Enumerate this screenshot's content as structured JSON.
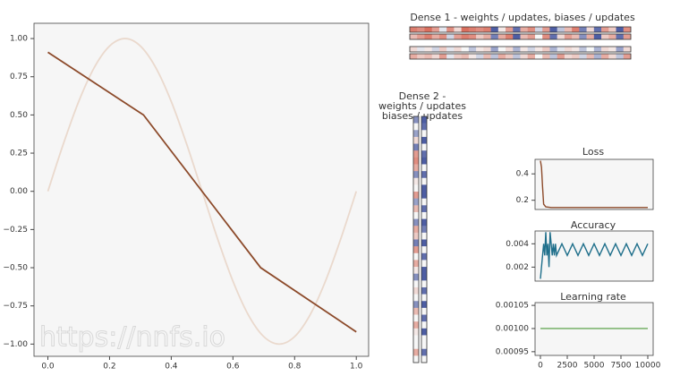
{
  "chart_data": [
    {
      "type": "line",
      "annotation": "https://nnfs.io",
      "xlim": [
        -0.045,
        1.04
      ],
      "ylim": [
        -1.08,
        1.1
      ],
      "xticks": [
        {
          "value": 0,
          "label": "0.0"
        },
        {
          "value": 0.2,
          "label": "0.2"
        },
        {
          "value": 0.4,
          "label": "0.4"
        },
        {
          "value": 0.6,
          "label": "0.6"
        },
        {
          "value": 0.8,
          "label": "0.8"
        },
        {
          "value": 1,
          "label": "1.0"
        }
      ],
      "yticks": [
        {
          "value": 1,
          "label": "1.00"
        },
        {
          "value": 0.75,
          "label": "0.75"
        },
        {
          "value": 0.5,
          "label": "0.50"
        },
        {
          "value": 0.25,
          "label": "0.25"
        },
        {
          "value": 0,
          "label": "0.00"
        },
        {
          "value": -0.25,
          "label": "−0.25"
        },
        {
          "value": -0.5,
          "label": "−0.50"
        },
        {
          "value": -0.75,
          "label": "−0.75"
        },
        {
          "value": -1,
          "label": "−1.00"
        }
      ],
      "series": [
        {
          "color": "#ead9cd",
          "smooth": true,
          "x": [
            0,
            0.05,
            0.1,
            0.15,
            0.2,
            0.25,
            0.3,
            0.35,
            0.4,
            0.45,
            0.5,
            0.55,
            0.6,
            0.65,
            0.7,
            0.75,
            0.8,
            0.85,
            0.9,
            0.95,
            1
          ],
          "values": [
            0,
            0.309,
            0.588,
            0.809,
            0.951,
            1,
            0.951,
            0.809,
            0.588,
            0.309,
            0,
            -0.309,
            -0.588,
            -0.809,
            -0.951,
            -1,
            -0.951,
            -0.809,
            -0.588,
            -0.309,
            0
          ]
        },
        {
          "color": "#8c4a2a",
          "smooth": false,
          "x": [
            0,
            0.31,
            0.69,
            1
          ],
          "values": [
            0.91,
            0.5,
            -0.5,
            -0.92
          ]
        }
      ]
    },
    {
      "type": "heatmap",
      "orientation": "horizontal",
      "title": "Dense 1 - weights / updates, biases / updates",
      "values": [
        [
          0.8,
          0.7,
          0.9,
          0.6,
          -0.1,
          0.7,
          0.2,
          0.9,
          0.8,
          0.7,
          0.8,
          -0.9,
          0.1,
          0.6,
          -0.8,
          0.5,
          0.7,
          -0.2,
          0.6,
          -0.9,
          -0.3,
          0.4,
          0.8,
          -0.7,
          0.2,
          -0.8,
          0.6,
          0.3,
          -0.9,
          0.7
        ],
        [
          0.4,
          0.6,
          0.8,
          0.5,
          0.7,
          -0.2,
          0.6,
          0.8,
          0.7,
          0.3,
          0.5,
          -0.7,
          0.5,
          0.8,
          -0.9,
          0.4,
          0.6,
          0,
          0.7,
          -0.8,
          0.2,
          0.6,
          0.4,
          -0.6,
          0.5,
          -0.9,
          0.3,
          0.5,
          -0.8,
          0.6
        ],
        [
          0.2,
          -0.1,
          0.1,
          -0.2,
          0.3,
          -0.1,
          0.2,
          0,
          -0.3,
          0.1,
          0.2,
          -0.5,
          0,
          0.2,
          -0.4,
          0.1,
          -0.2,
          0.1,
          0.3,
          -0.4,
          -0.1,
          0.2,
          0.1,
          -0.3,
          0,
          -0.4,
          0.2,
          0.1,
          -0.5,
          0.2
        ],
        [
          0.5,
          0.3,
          0.4,
          0.2,
          0.6,
          -0.1,
          0.3,
          0.4,
          0.1,
          -0.2,
          0.4,
          -0.3,
          0.5,
          0.3,
          -0.3,
          0.2,
          0.5,
          0,
          0.4,
          -0.3,
          0.6,
          0.2,
          0.3,
          -0.2,
          0.4,
          -0.4,
          0.5,
          0.2,
          -0.3,
          0.6
        ]
      ]
    },
    {
      "type": "heatmap",
      "orientation": "vertical",
      "title": [
        "Dense 2 -",
        "weights / updates",
        "biases / updates"
      ],
      "values": [
        [
          -0.6,
          0,
          -0.5,
          0.2,
          -0.7,
          0.6,
          0.7,
          0.5,
          -0.6,
          0.1,
          0,
          0.6,
          -0.5,
          0.4,
          0,
          -0.6,
          0.5,
          0.3,
          -0.7,
          0.6,
          0,
          0.5,
          0.1,
          -0.6,
          0,
          0.2,
          0,
          -0.6,
          0.4,
          0,
          0.5,
          0.1,
          0,
          0,
          0.5,
          0
        ],
        [
          -0.9,
          -0.8,
          0,
          -0.9,
          0,
          -0.8,
          -0.9,
          0,
          -0.8,
          0,
          -0.9,
          -0.9,
          0,
          -0.8,
          0,
          -0.9,
          -0.7,
          0,
          -0.9,
          0,
          -0.8,
          0,
          -0.9,
          -0.9,
          0,
          -0.8,
          0,
          -0.9,
          0,
          -0.8,
          0,
          -0.9,
          0,
          0,
          -0.8,
          0
        ]
      ]
    },
    {
      "type": "line",
      "title": "Loss",
      "xlim": [
        -500,
        10500
      ],
      "ylim": [
        0.13,
        0.51
      ],
      "yticks": [
        0.2,
        0.4
      ],
      "series": [
        {
          "color": "#8c4a2a",
          "smooth": false,
          "x": [
            0,
            100,
            200,
            300,
            500,
            1000,
            10000
          ],
          "values": [
            0.5,
            0.45,
            0.3,
            0.17,
            0.15,
            0.145,
            0.145
          ]
        }
      ]
    },
    {
      "type": "line",
      "title": "Accuracy",
      "xlim": [
        -500,
        10500
      ],
      "ylim": [
        0.0008,
        0.0051
      ],
      "yticks": [
        0.002,
        0.004
      ],
      "series": [
        {
          "color": "#1f6f8b",
          "smooth": false,
          "x": [
            0,
            100,
            200,
            300,
            400,
            500,
            600,
            700,
            800,
            900,
            1000,
            1100,
            1200,
            1300,
            1400,
            1500,
            2000,
            2500,
            3000,
            3500,
            4000,
            4500,
            5000,
            5500,
            6000,
            6500,
            7000,
            7500,
            8000,
            8500,
            9000,
            9500,
            10000
          ],
          "values": [
            0.001,
            0.002,
            0.003,
            0.004,
            0.003,
            0.005,
            0.003,
            0.004,
            0.002,
            0.005,
            0.004,
            0.003,
            0.004,
            0.003,
            0.004,
            0.003,
            0.004,
            0.003,
            0.004,
            0.003,
            0.004,
            0.003,
            0.004,
            0.003,
            0.004,
            0.003,
            0.004,
            0.003,
            0.004,
            0.003,
            0.004,
            0.003,
            0.004
          ]
        }
      ]
    },
    {
      "type": "line",
      "title": "Learning rate",
      "xlim": [
        -500,
        10500
      ],
      "ylim": [
        0.000942,
        0.001056
      ],
      "yticks": [
        {
          "value": 0.00105,
          "label": "0.00105"
        },
        {
          "value": 0.001,
          "label": "0.00100"
        },
        {
          "value": 0.00095,
          "label": "0.00095"
        }
      ],
      "xticks": [
        0,
        2500,
        5000,
        7500,
        10000
      ],
      "series": [
        {
          "color": "#6aaa5a",
          "smooth": false,
          "x": [
            0,
            10000
          ],
          "values": [
            0.001,
            0.001
          ]
        }
      ]
    }
  ]
}
